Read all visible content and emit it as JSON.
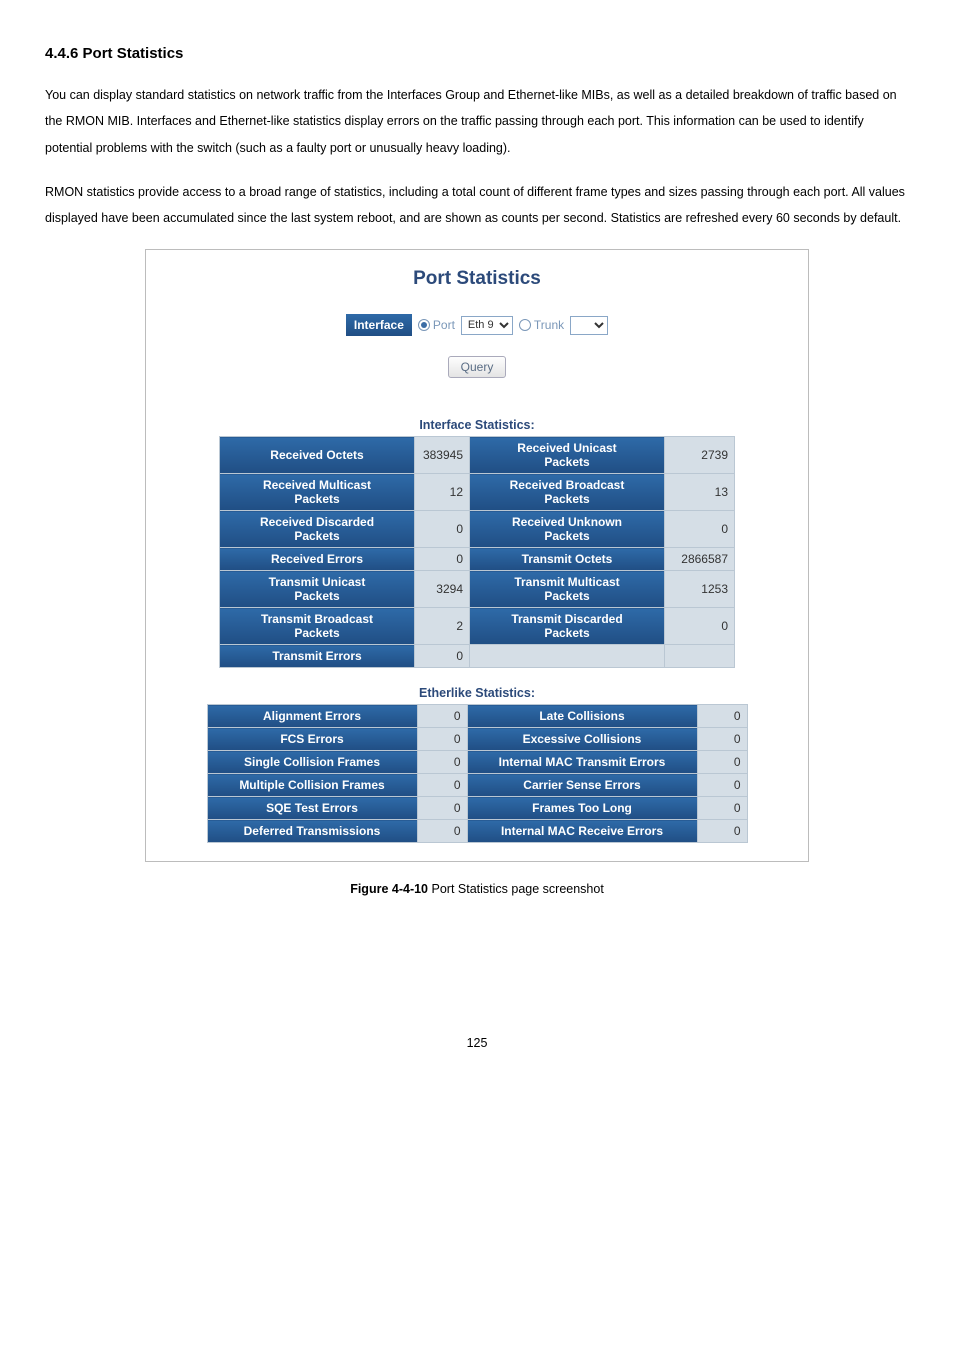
{
  "section_heading": "4.4.6 Port Statistics",
  "para1": "You can display standard statistics on network traffic from the Interfaces Group and Ethernet-like MIBs, as well as a detailed breakdown of traffic based on the RMON MIB. Interfaces and Ethernet-like statistics display errors on the traffic passing through each port. This information can be used to identify potential problems with the switch (such as a faulty port or unusually heavy loading).",
  "para2": "RMON statistics provide access to a broad range of statistics, including a total count of different frame types and sizes passing through each port. All values displayed have been accumulated since the last system reboot, and are shown as counts per second. Statistics are refreshed every 60 seconds by default.",
  "panel": {
    "title": "Port Statistics",
    "interface_label": "Interface",
    "port_radio_label": "Port",
    "port_select_value": "Eth 9",
    "trunk_radio_label": "Trunk",
    "query_btn": "Query",
    "interface_stats_title": "Interface Statistics:",
    "etherlike_stats_title": "Etherlike Statistics:"
  },
  "interface_table": {
    "rows": [
      {
        "l_label": "Received Octets",
        "l_val": "383945",
        "r_label": "Received Unicast Packets",
        "r_val": "2739"
      },
      {
        "l_label": "Received Multicast Packets",
        "l_val": "12",
        "r_label": "Received Broadcast Packets",
        "r_val": "13"
      },
      {
        "l_label": "Received Discarded Packets",
        "l_val": "0",
        "r_label": "Received Unknown Packets",
        "r_val": "0"
      },
      {
        "l_label": "Received Errors",
        "l_val": "0",
        "r_label": "Transmit Octets",
        "r_val": "2866587"
      },
      {
        "l_label": "Transmit Unicast Packets",
        "l_val": "3294",
        "r_label": "Transmit Multicast Packets",
        "r_val": "1253"
      },
      {
        "l_label": "Transmit Broadcast Packets",
        "l_val": "2",
        "r_label": "Transmit Discarded Packets",
        "r_val": "0"
      },
      {
        "l_label": "Transmit Errors",
        "l_val": "0",
        "r_label": "",
        "r_val": ""
      }
    ],
    "col_widths": {
      "l_label": 195,
      "l_val": 55,
      "r_label": 195,
      "r_val": 70
    }
  },
  "etherlike_table": {
    "rows": [
      {
        "l_label": "Alignment Errors",
        "l_val": "0",
        "r_label": "Late Collisions",
        "r_val": "0"
      },
      {
        "l_label": "FCS Errors",
        "l_val": "0",
        "r_label": "Excessive Collisions",
        "r_val": "0"
      },
      {
        "l_label": "Single Collision Frames",
        "l_val": "0",
        "r_label": "Internal MAC Transmit Errors",
        "r_val": "0"
      },
      {
        "l_label": "Multiple Collision Frames",
        "l_val": "0",
        "r_label": "Carrier Sense Errors",
        "r_val": "0"
      },
      {
        "l_label": "SQE Test Errors",
        "l_val": "0",
        "r_label": "Frames Too Long",
        "r_val": "0"
      },
      {
        "l_label": "Deferred Transmissions",
        "l_val": "0",
        "r_label": "Internal MAC Receive Errors",
        "r_val": "0"
      }
    ],
    "col_widths": {
      "l_label": 210,
      "l_val": 30,
      "r_label": 230,
      "r_val": 30
    }
  },
  "caption_bold": "Figure 4-4-10",
  "caption_rest": " Port Statistics page screenshot",
  "page_number": "125",
  "colors": {
    "header_grad_top": "#2e6aa8",
    "header_grad_bottom": "#204e84",
    "panel_title": "#2c4a7a",
    "value_bg": "#d5dee6",
    "table_border": "#bac7d3",
    "box_border": "#bcbcbc"
  }
}
